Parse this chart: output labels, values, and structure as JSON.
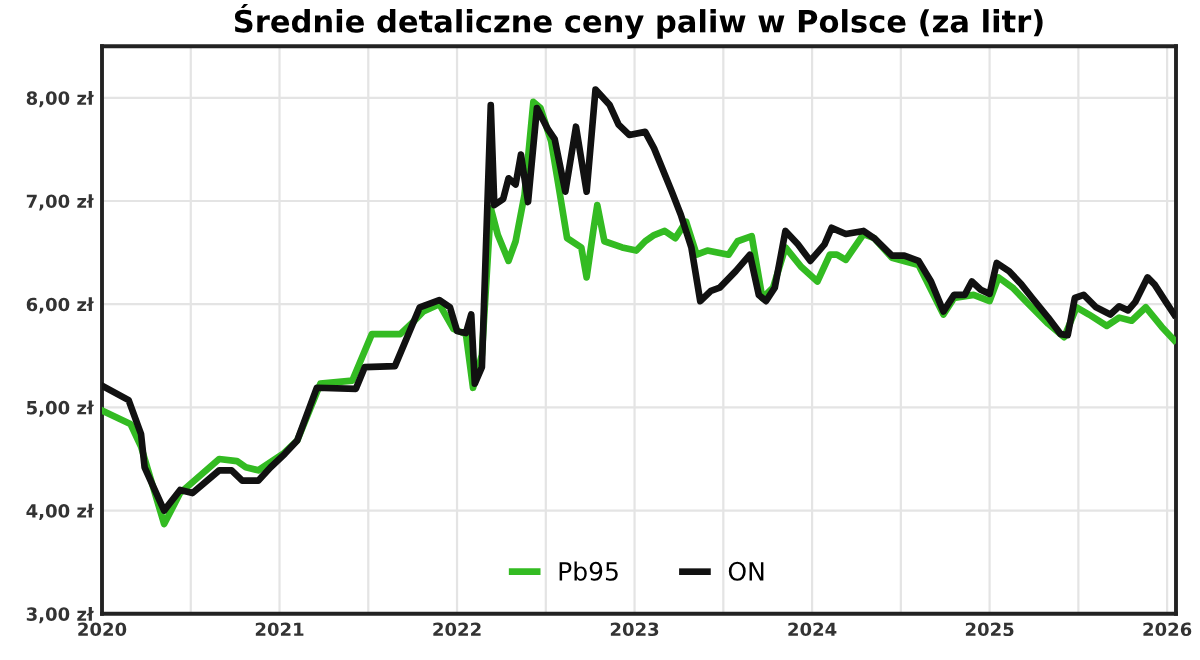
{
  "chart_data": {
    "type": "line",
    "title": "Średnie detaliczne ceny paliw w Polsce (za litr)",
    "xlim": [
      2020,
      2026.05
    ],
    "ylim": [
      3,
      8.5
    ],
    "xticks": [
      2020,
      {
        "value": 2020.5,
        "label": null
      },
      2021,
      {
        "value": 2021.5,
        "label": null
      },
      2022,
      {
        "value": 2022.5,
        "label": null
      },
      2023,
      {
        "value": 2023.5,
        "label": null
      },
      2024,
      {
        "value": 2024.5,
        "label": null
      },
      2025,
      {
        "value": 2025.5,
        "label": null
      },
      2026
    ],
    "yticks": [
      {
        "value": 3,
        "label": "3,00 zł"
      },
      {
        "value": 4,
        "label": "4,00 zł"
      },
      {
        "value": 5,
        "label": "5,00 zł"
      },
      {
        "value": 6,
        "label": "6,00 zł"
      },
      {
        "value": 7,
        "label": "7,00 zł"
      },
      {
        "value": 8,
        "label": "8,00 zł"
      }
    ],
    "grid": true,
    "legend": "bottom",
    "line_style": "solid",
    "marker": "none",
    "series": [
      {
        "name": "Pb95",
        "color": "#33bb22",
        "x": [
          2020.0,
          2020.16,
          2020.22,
          2020.35,
          2020.44,
          2020.66,
          2020.76,
          2020.81,
          2020.88,
          2021.02,
          2021.1,
          2021.23,
          2021.41,
          2021.52,
          2021.68,
          2021.76,
          2021.81,
          2021.9,
          2021.98,
          2022.05,
          2022.09,
          2022.14,
          2022.19,
          2022.23,
          2022.29,
          2022.33,
          2022.38,
          2022.43,
          2022.47,
          2022.53,
          2022.58,
          2022.62,
          2022.7,
          2022.73,
          2022.77,
          2022.79,
          2022.83,
          2022.93,
          2023.01,
          2023.06,
          2023.11,
          2023.17,
          2023.23,
          2023.29,
          2023.35,
          2023.41,
          2023.53,
          2023.58,
          2023.66,
          2023.72,
          2023.78,
          2023.85,
          2023.94,
          2024.03,
          2024.1,
          2024.14,
          2024.19,
          2024.29,
          2024.35,
          2024.45,
          2024.6,
          2024.74,
          2024.8,
          2024.91,
          2025.0,
          2025.05,
          2025.13,
          2025.22,
          2025.33,
          2025.42,
          2025.49,
          2025.56,
          2025.66,
          2025.73,
          2025.8,
          2025.88,
          2025.97,
          2026.04
        ],
        "values": [
          4.97,
          4.84,
          4.62,
          3.87,
          4.17,
          4.5,
          4.48,
          4.42,
          4.39,
          4.55,
          4.68,
          5.23,
          5.26,
          5.71,
          5.71,
          5.84,
          5.93,
          6.0,
          5.76,
          5.71,
          5.19,
          5.51,
          6.93,
          6.67,
          6.42,
          6.61,
          7.06,
          7.96,
          7.9,
          7.58,
          7.06,
          6.64,
          6.55,
          6.26,
          6.74,
          6.96,
          6.61,
          6.55,
          6.52,
          6.61,
          6.67,
          6.71,
          6.64,
          6.8,
          6.48,
          6.52,
          6.48,
          6.61,
          6.66,
          6.06,
          6.16,
          6.55,
          6.36,
          6.22,
          6.48,
          6.48,
          6.43,
          6.68,
          6.64,
          6.45,
          6.38,
          5.9,
          6.06,
          6.09,
          6.03,
          6.26,
          6.16,
          6.0,
          5.81,
          5.68,
          5.97,
          5.9,
          5.79,
          5.87,
          5.84,
          5.97,
          5.78,
          5.65
        ]
      },
      {
        "name": "ON",
        "color": "#111111",
        "x": [
          2020.0,
          2020.15,
          2020.22,
          2020.24,
          2020.35,
          2020.44,
          2020.51,
          2020.66,
          2020.73,
          2020.79,
          2020.88,
          2020.95,
          2021.03,
          2021.1,
          2021.21,
          2021.43,
          2021.48,
          2021.65,
          2021.79,
          2021.9,
          2021.96,
          2022.0,
          2022.05,
          2022.08,
          2022.1,
          2022.14,
          2022.19,
          2022.21,
          2022.26,
          2022.29,
          2022.33,
          2022.36,
          2022.4,
          2022.45,
          2022.51,
          2022.55,
          2022.61,
          2022.67,
          2022.73,
          2022.78,
          2022.86,
          2022.91,
          2022.97,
          2023.06,
          2023.11,
          2023.21,
          2023.26,
          2023.32,
          2023.37,
          2023.43,
          2023.48,
          2023.57,
          2023.65,
          2023.7,
          2023.74,
          2023.79,
          2023.85,
          2023.92,
          2023.99,
          2024.07,
          2024.11,
          2024.19,
          2024.29,
          2024.35,
          2024.45,
          2024.52,
          2024.6,
          2024.67,
          2024.74,
          2024.8,
          2024.86,
          2024.9,
          2024.95,
          2025.0,
          2025.04,
          2025.11,
          2025.18,
          2025.24,
          2025.33,
          2025.4,
          2025.44,
          2025.48,
          2025.53,
          2025.6,
          2025.68,
          2025.73,
          2025.78,
          2025.82,
          2025.89,
          2025.93,
          2025.99,
          2026.04
        ],
        "values": [
          5.21,
          5.07,
          4.74,
          4.42,
          4.0,
          4.2,
          4.17,
          4.39,
          4.39,
          4.29,
          4.29,
          4.42,
          4.55,
          4.68,
          5.19,
          5.18,
          5.39,
          5.4,
          5.97,
          6.04,
          5.97,
          5.74,
          5.72,
          5.9,
          5.23,
          5.39,
          7.93,
          6.96,
          7.02,
          7.22,
          7.16,
          7.45,
          6.99,
          7.9,
          7.7,
          7.6,
          7.09,
          7.72,
          7.09,
          8.08,
          7.93,
          7.74,
          7.64,
          7.67,
          7.51,
          7.09,
          6.87,
          6.55,
          6.03,
          6.13,
          6.16,
          6.32,
          6.48,
          6.09,
          6.03,
          6.16,
          6.71,
          6.58,
          6.42,
          6.58,
          6.74,
          6.68,
          6.71,
          6.64,
          6.47,
          6.47,
          6.42,
          6.22,
          5.93,
          6.09,
          6.09,
          6.22,
          6.14,
          6.1,
          6.4,
          6.32,
          6.19,
          6.06,
          5.87,
          5.71,
          5.7,
          6.06,
          6.09,
          5.97,
          5.9,
          5.98,
          5.94,
          6.02,
          6.26,
          6.19,
          6.03,
          5.9
        ]
      }
    ]
  }
}
